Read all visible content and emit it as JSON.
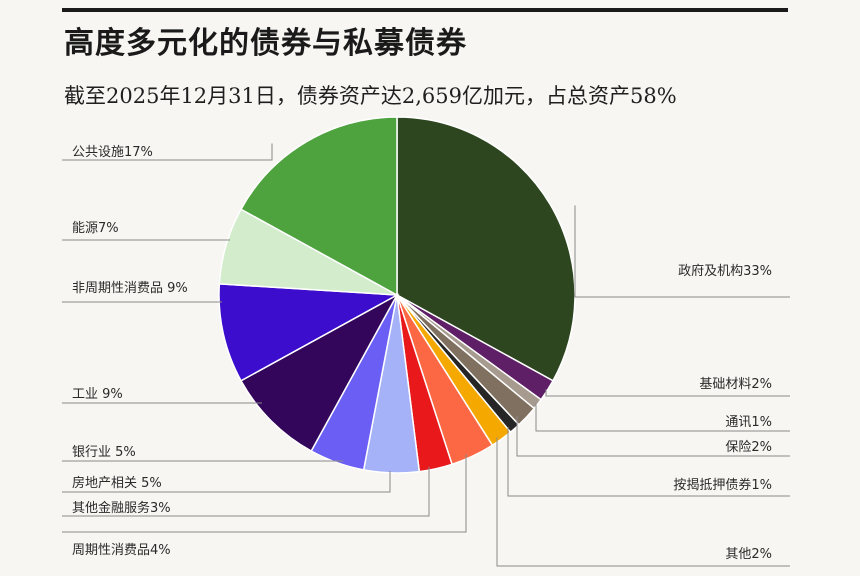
{
  "header": {
    "title": "高度多元化的债券与私募债券",
    "subtitle": "截至2025年12月31日，债券资产达2,659亿加元，占总资产58%"
  },
  "chart_data": {
    "type": "pie",
    "start": "12 o'clock",
    "direction": "clockwise",
    "slices": [
      {
        "label": "政府及机构33%",
        "value": 33,
        "color": "#2d4620"
      },
      {
        "label": "基础材料2%",
        "value": 2,
        "color": "#5e1f66"
      },
      {
        "label": "通讯1%",
        "value": 1,
        "color": "#a79a8e"
      },
      {
        "label": "保险2%",
        "value": 2,
        "color": "#80705f"
      },
      {
        "label": "按揭抵押债券1%",
        "value": 1,
        "color": "#262626"
      },
      {
        "label": "其他2%",
        "value": 2,
        "color": "#f5a900"
      },
      {
        "label": "周期性消费品4%",
        "value": 4,
        "color": "#fb6843"
      },
      {
        "label": "其他金融服务3%",
        "value": 3,
        "color": "#e8181b"
      },
      {
        "label": "房地产相关 5%",
        "value": 5,
        "color": "#a5b2f8"
      },
      {
        "label": "银行业 5%",
        "value": 5,
        "color": "#6a5ef4"
      },
      {
        "label": "工业 9%",
        "value": 9,
        "color": "#33065c"
      },
      {
        "label": "非周期性消费品 9%",
        "value": 9,
        "color": "#3c0dcc"
      },
      {
        "label": "能源7%",
        "value": 7,
        "color": "#d3eccb"
      },
      {
        "label": "公共设施17%",
        "value": 17,
        "color": "#4ea33e"
      }
    ]
  }
}
